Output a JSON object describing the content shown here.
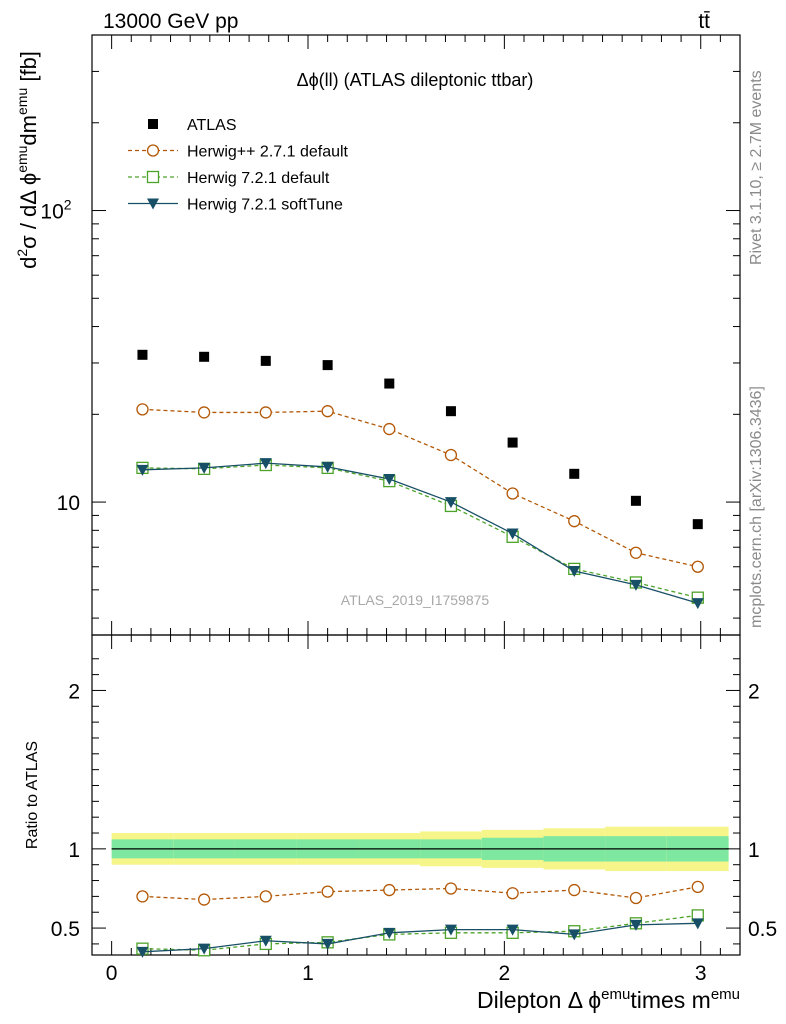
{
  "header": {
    "left": "13000 GeV pp",
    "right": "tt̄"
  },
  "side_labels": {
    "top": "Rivet 3.1.10, ≥ 2.7M events",
    "bottom": "mcplots.cern.ch [arXiv:1306.3436]"
  },
  "chart_data": {
    "type": "scatter",
    "title": "Δϕ(ll) (ATLAS dileptonic ttbar)",
    "analysis": "ATLAS_2019_I1759875",
    "xlabel": "Dilepton Δ ϕ^emu times m^emu",
    "ylabel": "d²σ / dΔ ϕ^emu dm^emu [fb]",
    "ratio_ylabel": "Ratio to ATLAS",
    "xlim": [
      -0.1,
      3.2
    ],
    "ylim": [
      3.5,
      400
    ],
    "yscale": "log",
    "ratio_ylim": [
      0.33,
      2.35
    ],
    "x_ticks": [
      "0",
      "1",
      "2",
      "3"
    ],
    "y_ticks": [
      "10",
      "10^2"
    ],
    "ratio_ticks": [
      "0.5",
      "1",
      "2"
    ],
    "legend_position": "top-left",
    "x": [
      0.157,
      0.471,
      0.785,
      1.1,
      1.414,
      1.728,
      2.042,
      2.356,
      2.67,
      2.985
    ],
    "series": [
      {
        "name": "ATLAS",
        "color": "#000000",
        "marker": "square-filled",
        "values": [
          32,
          31.5,
          30.5,
          29.5,
          25.5,
          20.5,
          16,
          12.5,
          10.1,
          8.4
        ]
      },
      {
        "name": "Herwig++ 2.7.1 default",
        "color": "#b35806",
        "marker": "circle-open",
        "linestyle": "dashed",
        "values": [
          20.8,
          20.3,
          20.3,
          20.5,
          17.8,
          14.5,
          10.7,
          8.6,
          6.7,
          6
        ]
      },
      {
        "name": "Herwig 7.2.1 default",
        "color": "#4da329",
        "marker": "square-open",
        "linestyle": "dashed",
        "values": [
          13.1,
          13,
          13.4,
          13.1,
          11.8,
          9.7,
          7.6,
          5.9,
          5.3,
          4.7
        ]
      },
      {
        "name": "Herwig 7.2.1 softTune",
        "color": "#174f66",
        "marker": "triangle-down-filled",
        "linestyle": "solid",
        "values": [
          12.9,
          13.1,
          13.6,
          13.2,
          12,
          10,
          7.8,
          5.8,
          5.2,
          4.5
        ]
      }
    ],
    "ratio_series": [
      {
        "name": "Herwig++ 2.7.1 default",
        "values": [
          0.7,
          0.68,
          0.7,
          0.73,
          0.74,
          0.75,
          0.72,
          0.74,
          0.69,
          0.76
        ]
      },
      {
        "name": "Herwig 7.2.1 default",
        "values": [
          0.37,
          0.36,
          0.4,
          0.41,
          0.46,
          0.47,
          0.47,
          0.48,
          0.53,
          0.58
        ]
      },
      {
        "name": "Herwig 7.2.1 softTune",
        "values": [
          0.35,
          0.37,
          0.42,
          0.4,
          0.47,
          0.49,
          0.49,
          0.46,
          0.52,
          0.53
        ]
      }
    ],
    "ratio_band": {
      "inner": [
        0.06,
        0.06,
        0.06,
        0.06,
        0.06,
        0.06,
        0.07,
        0.08,
        0.08,
        0.08
      ],
      "outer": [
        0.1,
        0.1,
        0.1,
        0.1,
        0.1,
        0.11,
        0.12,
        0.13,
        0.14,
        0.14
      ]
    },
    "bin_edges": [
      0,
      0.314,
      0.628,
      0.942,
      1.257,
      1.571,
      1.885,
      2.199,
      2.513,
      2.827,
      3.142
    ],
    "colors": {
      "band_inner": "#7ee8a0",
      "band_outer": "#f5f58a"
    }
  }
}
